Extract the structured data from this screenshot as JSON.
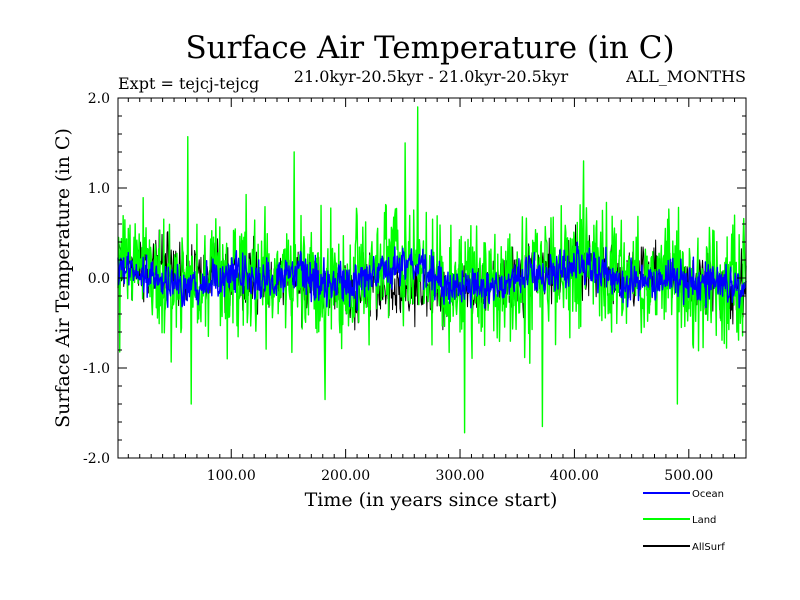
{
  "chart_data": {
    "type": "line",
    "title": "Surface Air Temperature (in C)",
    "subtitle_left": "Expt = tejcj-tejcg",
    "subtitle_center": "21.0kyr-20.5kyr - 21.0kyr-20.5kyr",
    "subtitle_right": "ALL_MONTHS",
    "xlabel": "Time (in years since start)",
    "ylabel": "Surface Air Temperature (in C)",
    "xlim": [
      1,
      550
    ],
    "ylim": [
      -2.0,
      2.0
    ],
    "x_ticks": [
      100,
      200,
      300,
      400,
      500
    ],
    "x_tick_labels": [
      "100.00",
      "200.00",
      "300.00",
      "400.00",
      "500.00"
    ],
    "y_ticks": [
      -2.0,
      -1.0,
      0.0,
      1.0,
      2.0
    ],
    "y_tick_labels": [
      "-2.0",
      "-1.0",
      "0.0",
      "1.0",
      "2.0"
    ],
    "grid": false,
    "legend_position": "bottom-right",
    "x": {
      "start": 1,
      "end": 550,
      "step": 0.5
    },
    "series": [
      {
        "name": "Ocean",
        "color": "#0000ff",
        "draw_order": 2,
        "noise_amplitude": 0.17,
        "max": 0.6,
        "min": -0.6,
        "anchors": {
          "x": [
            1,
            20,
            40,
            60,
            80,
            100,
            120,
            140,
            160,
            180,
            200,
            220,
            240,
            260,
            280,
            300,
            320,
            340,
            360,
            380,
            400,
            420,
            440,
            460,
            480,
            500,
            520,
            550
          ],
          "y": [
            0.1,
            0.05,
            -0.05,
            -0.1,
            0.0,
            0.05,
            -0.05,
            0.0,
            0.05,
            -0.05,
            -0.1,
            0.0,
            0.1,
            0.15,
            0.0,
            -0.15,
            -0.1,
            -0.05,
            0.05,
            0.0,
            0.15,
            0.1,
            -0.05,
            -0.05,
            0.0,
            -0.05,
            -0.05,
            -0.1
          ]
        }
      },
      {
        "name": "Land",
        "color": "#00ff00",
        "draw_order": 1,
        "noise_amplitude": 0.5,
        "max": 1.9,
        "min": -1.72,
        "anchors": {
          "x": [
            1,
            20,
            40,
            60,
            80,
            100,
            120,
            140,
            160,
            180,
            200,
            220,
            240,
            260,
            280,
            300,
            320,
            340,
            360,
            380,
            400,
            420,
            440,
            460,
            480,
            500,
            520,
            550
          ],
          "y": [
            0.15,
            0.05,
            -0.05,
            -0.1,
            0.0,
            0.05,
            -0.05,
            0.0,
            0.05,
            -0.05,
            -0.1,
            0.0,
            0.1,
            0.2,
            0.0,
            -0.2,
            -0.1,
            -0.05,
            0.05,
            0.0,
            0.2,
            0.1,
            -0.05,
            -0.05,
            0.0,
            -0.05,
            -0.05,
            -0.1
          ]
        },
        "spikes": [
          {
            "x": 62,
            "y": 1.57
          },
          {
            "x": 263,
            "y": 1.9
          },
          {
            "x": 252,
            "y": 1.5
          },
          {
            "x": 155,
            "y": 1.4
          },
          {
            "x": 408,
            "y": 1.3
          },
          {
            "x": 304,
            "y": -1.72
          },
          {
            "x": 372,
            "y": -1.65
          },
          {
            "x": 65,
            "y": -1.4
          },
          {
            "x": 490,
            "y": -1.4
          },
          {
            "x": 182,
            "y": -1.35
          }
        ]
      },
      {
        "name": "AllSurf",
        "color": "#000000",
        "draw_order": 0,
        "noise_amplitude": 0.25,
        "hidden_under": [
          "Land",
          "Ocean"
        ],
        "anchors": {
          "x": [
            1,
            100,
            200,
            300,
            400,
            500,
            550
          ],
          "y": [
            0.1,
            0.05,
            -0.1,
            -0.15,
            0.15,
            -0.05,
            -0.1
          ]
        }
      }
    ]
  }
}
